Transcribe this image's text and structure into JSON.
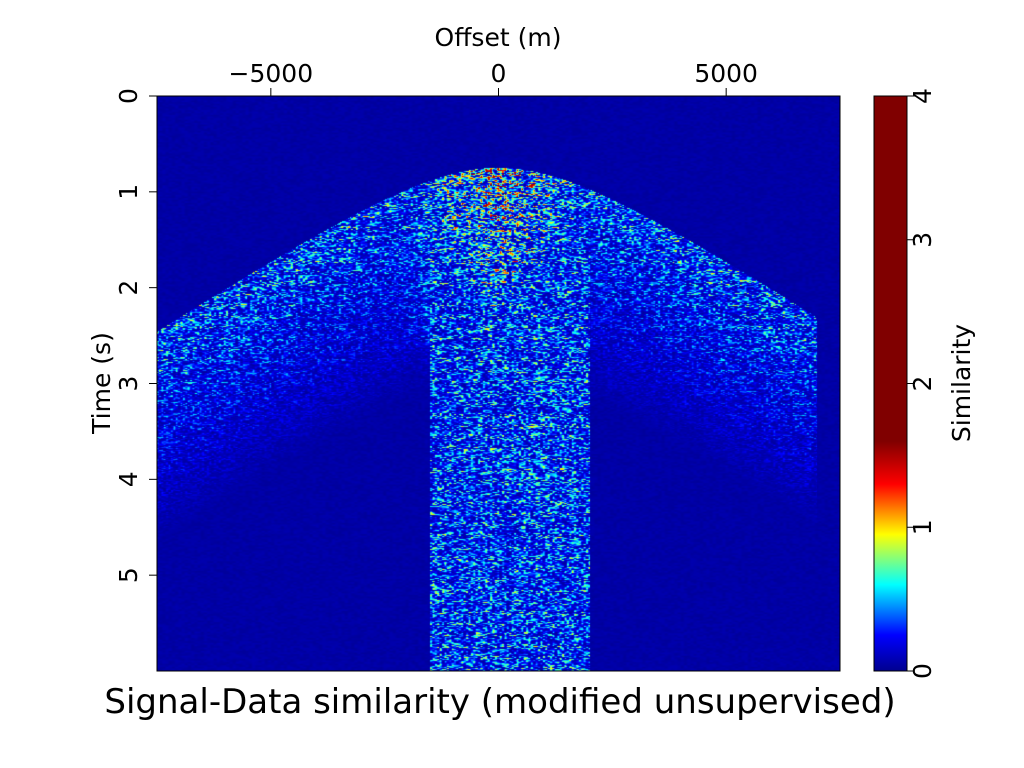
{
  "chart_data": {
    "type": "heatmap",
    "title": "Signal-Data similarity (modified unsupervised)",
    "xlabel": "Offset (m)",
    "ylabel": "Time (s)",
    "xlim": [
      -7500,
      7500
    ],
    "ylim": [
      0,
      6
    ],
    "x_ticks": [
      -5000,
      0,
      5000
    ],
    "x_tick_labels": [
      "−5000",
      "0",
      "5000"
    ],
    "y_ticks": [
      0,
      1,
      2,
      3,
      4,
      5
    ],
    "y_tick_labels": [
      "0",
      "1",
      "2",
      "3",
      "4",
      "5"
    ],
    "x_axis_position": "top",
    "y_axis_inverted": true,
    "colormap": "jet",
    "colorbar": {
      "label": "Similarity",
      "range": [
        0,
        4
      ],
      "ticks": [
        0,
        1,
        2,
        3,
        4
      ],
      "tick_labels": [
        "0",
        "1",
        "2",
        "3",
        "4"
      ],
      "stops": [
        {
          "v": 0.0,
          "color": "#00008f"
        },
        {
          "v": 0.25,
          "color": "#0000ff"
        },
        {
          "v": 0.6,
          "color": "#00ffff"
        },
        {
          "v": 0.95,
          "color": "#ffff00"
        },
        {
          "v": 1.3,
          "color": "#ff0000"
        },
        {
          "v": 1.6,
          "color": "#800000"
        },
        {
          "v": 4.0,
          "color": "#800000"
        }
      ]
    },
    "background_value": 0.05,
    "features": {
      "apex": {
        "offset": 0,
        "time": 0.75
      },
      "hyperbola_velocity_m_per_s": 3200,
      "strong_band_time": [
        0.75,
        2.6
      ],
      "strong_band_value": 0.9,
      "wide_event_region_offset": [
        -9000,
        7000
      ],
      "wide_event_value": 0.45,
      "central_column_offset": [
        -1500,
        2000
      ],
      "central_column_value": 0.4,
      "max_value": 1.5
    },
    "grid": false,
    "legend": "colorbar-right"
  }
}
